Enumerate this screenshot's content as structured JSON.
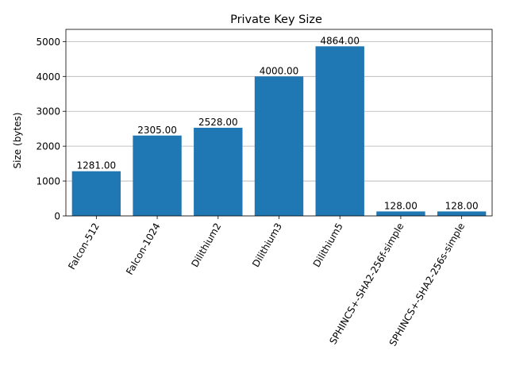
{
  "chart_data": {
    "type": "bar",
    "title": "Private Key Size",
    "xlabel": "",
    "ylabel": "Size (bytes)",
    "categories": [
      "Falcon-512",
      "Falcon-1024",
      "Dilithium2",
      "Dilithium3",
      "Dilithium5",
      "SPHINCS+-SHA2-256f-simple",
      "SPHINCS+-SHA2-256s-simple"
    ],
    "values": [
      1281,
      2305,
      2528,
      4000,
      4864,
      128,
      128
    ],
    "value_labels": [
      "1281.00",
      "2305.00",
      "2528.00",
      "4000.00",
      "4864.00",
      "128.00",
      "128.00"
    ],
    "ylim": [
      0,
      5350
    ],
    "yticks": [
      0,
      1000,
      2000,
      3000,
      4000,
      5000
    ],
    "grid": "y",
    "bar_color": "#1f77b4",
    "grid_color": "#b0b0b0"
  }
}
